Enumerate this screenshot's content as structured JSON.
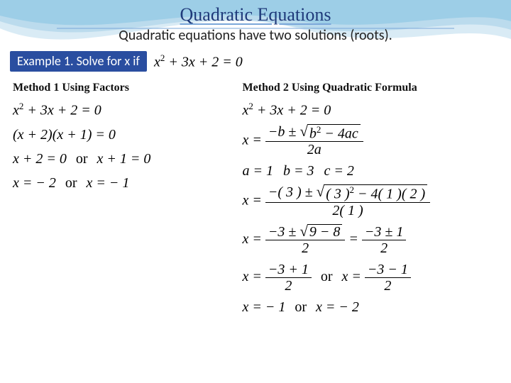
{
  "title": "Quadratic Equations",
  "subtitle": "Quadratic equations have two solutions (roots).",
  "example": {
    "label": "Example 1. Solve for x if",
    "equation_html": "x<sup>2</sup> + 3x + 2 = 0"
  },
  "method1": {
    "heading": "Method 1 Using Factors",
    "lines": [
      "x<sup>2</sup> + 3x + 2 = 0",
      "(x + 2)(x + 1) = 0",
      "x + 2 = 0 <span class=\"or\">or</span> x + 1 = 0",
      "x = − 2 <span class=\"or\">or</span> x = − 1"
    ]
  },
  "method2": {
    "heading": "Method 2 Using Quadratic Formula",
    "eq1_html": "x<sup>2</sup> + 3x + 2 = 0",
    "formula": {
      "num_html": "−b ± <span class=\"sqrt\"><span class=\"sqrt-sym\">√</span><span class=\"sqrt-body\">b<sup>2</sup> − 4ac</span></span>",
      "den_html": "2a"
    },
    "coeffs_html": "a = 1 <span class=\"small-space\"></span> b = 3 <span class=\"small-space\"></span> c = 2",
    "sub": {
      "num_html": "−( 3 ) ± <span class=\"sqrt\"><span class=\"sqrt-sym\">√</span><span class=\"sqrt-body\">( 3 )<sup>2</sup> − 4( 1 )( 2 )</span></span>",
      "den_html": "2( 1 )"
    },
    "simp1": {
      "left_num": "−3 ± <span class=\"sqrt\"><span class=\"sqrt-sym\">√</span><span class=\"sqrt-body\">9 − 8</span></span>",
      "left_den": "2",
      "right_num": "−3 ± 1",
      "right_den": "2"
    },
    "simp2": {
      "left_num": "−3 + 1",
      "left_den": "2",
      "right_num": "−3 − 1",
      "right_den": "2"
    },
    "result_html": "x = − 1 <span class=\"or\">or</span> x = − 2"
  },
  "colors": {
    "title": "#1f3a7a",
    "example_bg": "#2a4ea0",
    "wave1": "#cfe6f2",
    "wave2": "#a7d1e8",
    "wave3": "#7bbfe0"
  }
}
